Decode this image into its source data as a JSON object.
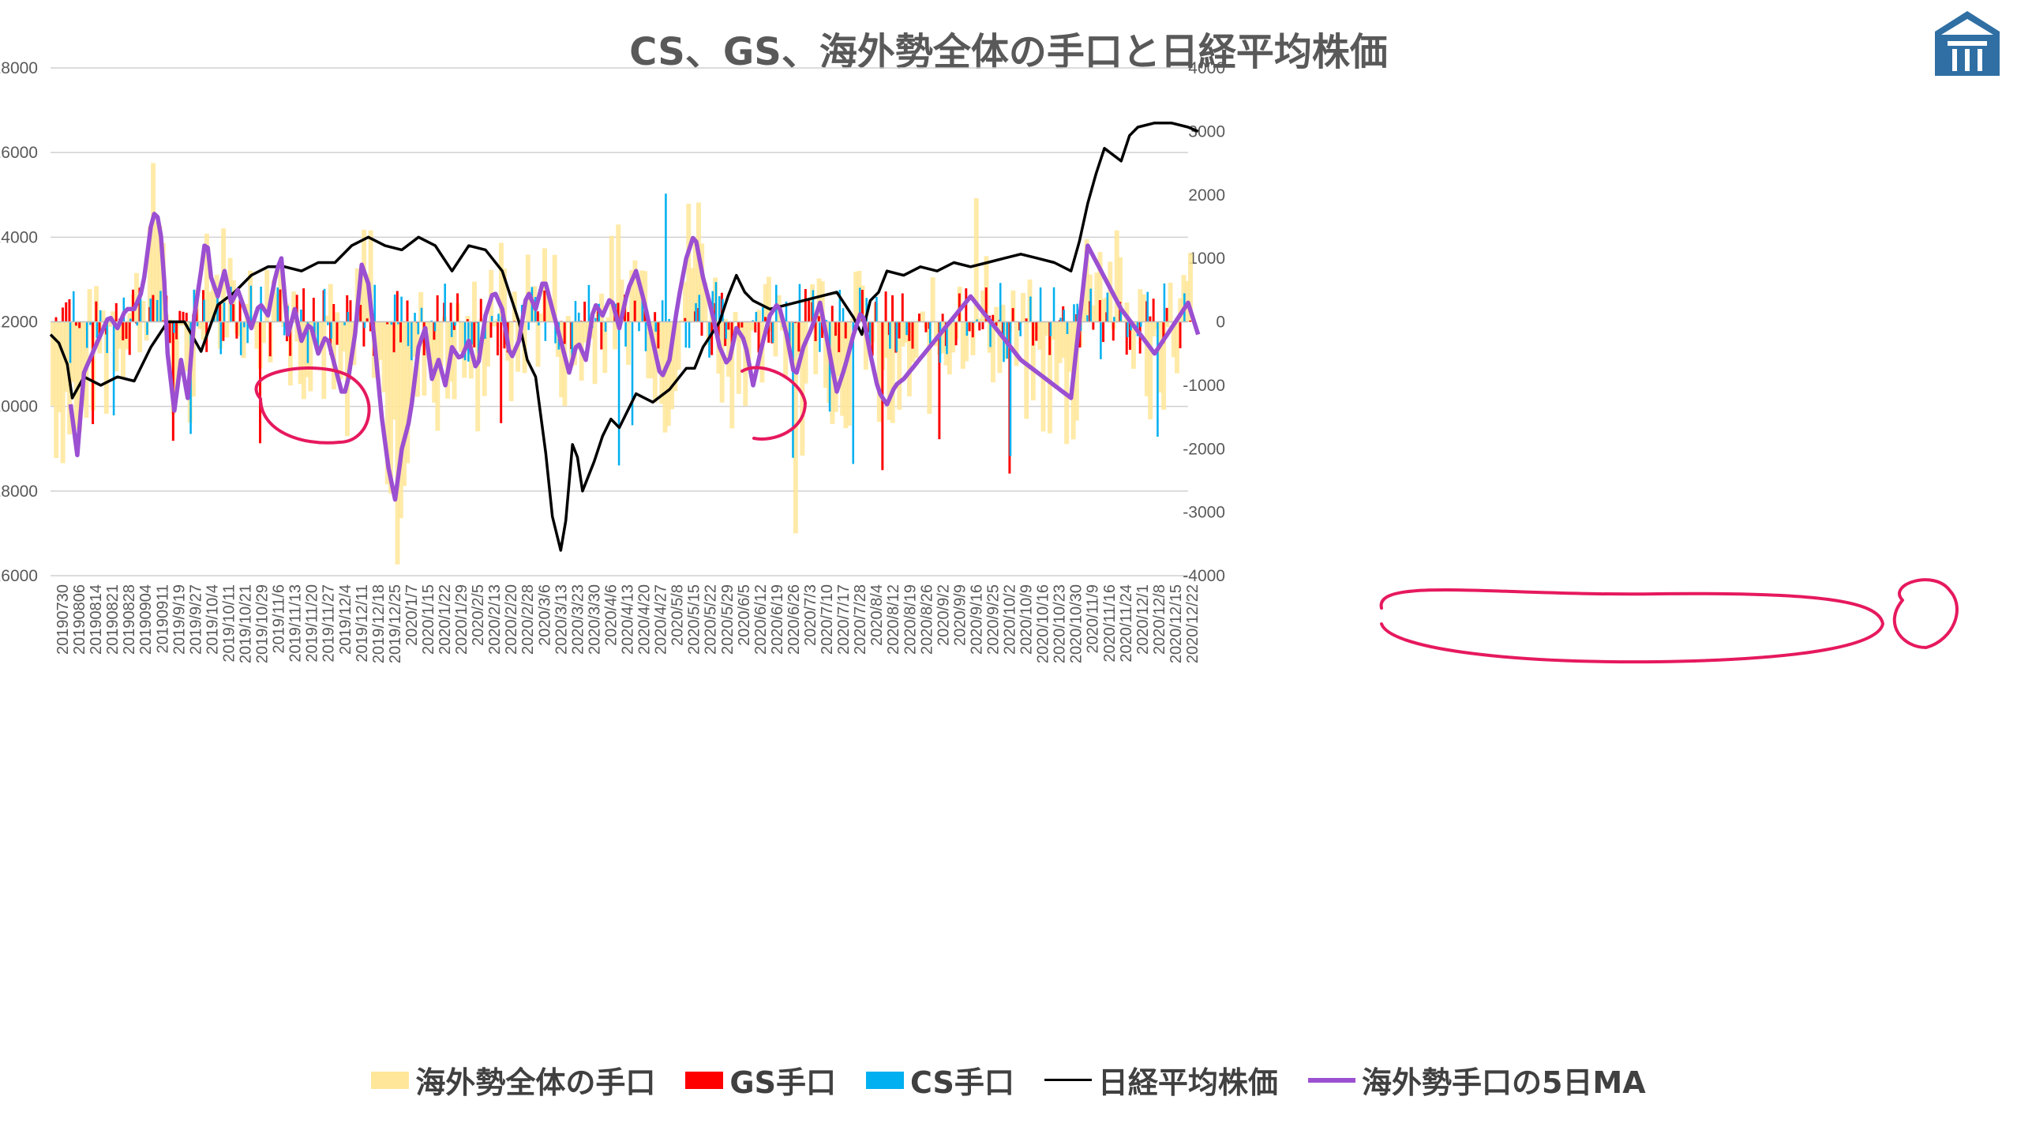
{
  "title": "CS、GS、海外勢全体の手口と日経平均株価",
  "legend": [
    {
      "label": "海外勢全体の手口",
      "kind": "box",
      "color": "#FFE699"
    },
    {
      "label": "GS手口",
      "kind": "box",
      "color": "#FF0000"
    },
    {
      "label": "CS手口",
      "kind": "box",
      "color": "#00B0F0"
    },
    {
      "label": "日経平均株価",
      "kind": "line",
      "color": "#000000"
    },
    {
      "label": "海外勢手口の5日MA",
      "kind": "line",
      "color": "#9B4FD1"
    }
  ],
  "chart_data": {
    "type": "bar",
    "title": "CS、GS、海外勢全体の手口と日経平均株価",
    "left_axis": {
      "min": 16000,
      "max": 28000,
      "ticks": [
        16000,
        18000,
        20000,
        22000,
        24000,
        26000,
        28000
      ]
    },
    "right_axis": {
      "min": -4000,
      "max": 4000,
      "ticks": [
        -4000,
        -3000,
        -2000,
        -1000,
        0,
        1000,
        2000,
        3000,
        4000
      ]
    },
    "grid": true,
    "legend_position": "bottom",
    "x_tick_labels": [
      "20190730",
      "20190806",
      "20190814",
      "20190821",
      "20190828",
      "20190904",
      "20190911",
      "2019/9/19",
      "2019/9/27",
      "2019/10/4",
      "2019/10/11",
      "2019/10/21",
      "2019/10/29",
      "2019/11/6",
      "2019/11/13",
      "2019/11/20",
      "2019/11/27",
      "2019/12/4",
      "2019/12/11",
      "2019/12/18",
      "2019/12/25",
      "2020/1/7",
      "2020/1/15",
      "2020/1/22",
      "2020/1/29",
      "2020/2/5",
      "2020/2/13",
      "2020/2/20",
      "2020/2/28",
      "2020/3/6",
      "2020/3/13",
      "2020/3/23",
      "2020/3/30",
      "2020/4/6",
      "2020/4/13",
      "2020/4/20",
      "2020/4/27",
      "2020/5/8",
      "2020/5/15",
      "2020/5/22",
      "2020/5/29",
      "2020/6/5",
      "2020/6/12",
      "2020/6/19",
      "2020/6/26",
      "2020/7/3",
      "2020/7/10",
      "2020/7/17",
      "2020/7/28",
      "2020/8/4",
      "2020/8/12",
      "2020/8/19",
      "2020/8/26",
      "2020/9/2",
      "2020/9/9",
      "2020/9/16",
      "2020/9/25",
      "2020/10/2",
      "2020/10/9",
      "2020/10/16",
      "2020/10/23",
      "2020/10/30",
      "2020/11/9",
      "2020/11/16",
      "2020/11/24",
      "2020/12/1",
      "2020/12/8",
      "2020/12/15",
      "2020/12/22"
    ],
    "series": [
      {
        "name": "日経平均株価",
        "type": "line",
        "axis": "left",
        "color": "#000000",
        "anchors": [
          [
            0,
            21700
          ],
          [
            0.5,
            21500
          ],
          [
            1,
            21000
          ],
          [
            1.3,
            20200
          ],
          [
            2,
            20700
          ],
          [
            3,
            20500
          ],
          [
            4,
            20700
          ],
          [
            5,
            20600
          ],
          [
            6,
            21400
          ],
          [
            7,
            22000
          ],
          [
            8,
            22000
          ],
          [
            9,
            21300
          ],
          [
            10,
            22400
          ],
          [
            11,
            22700
          ],
          [
            12,
            23100
          ],
          [
            13,
            23300
          ],
          [
            14,
            23300
          ],
          [
            15,
            23200
          ],
          [
            16,
            23400
          ],
          [
            17,
            23400
          ],
          [
            18,
            23800
          ],
          [
            19,
            24000
          ],
          [
            20,
            23800
          ],
          [
            21,
            23700
          ],
          [
            22,
            24000
          ],
          [
            23,
            23800
          ],
          [
            24,
            23200
          ],
          [
            25,
            23800
          ],
          [
            26,
            23700
          ],
          [
            27,
            23200
          ],
          [
            28,
            22000
          ],
          [
            28.5,
            21100
          ],
          [
            29,
            20700
          ],
          [
            29.6,
            18900
          ],
          [
            30,
            17400
          ],
          [
            30.5,
            16600
          ],
          [
            30.8,
            17300
          ],
          [
            31.2,
            19100
          ],
          [
            31.5,
            18800
          ],
          [
            31.8,
            18000
          ],
          [
            32.5,
            18700
          ],
          [
            33,
            19300
          ],
          [
            33.5,
            19700
          ],
          [
            34,
            19500
          ],
          [
            34.5,
            19900
          ],
          [
            35,
            20300
          ],
          [
            36,
            20100
          ],
          [
            37,
            20400
          ],
          [
            38,
            20900
          ],
          [
            38.5,
            20900
          ],
          [
            39,
            21400
          ],
          [
            40,
            22000
          ],
          [
            40.5,
            22600
          ],
          [
            41,
            23100
          ],
          [
            41.5,
            22700
          ],
          [
            42,
            22500
          ],
          [
            43,
            22300
          ],
          [
            44,
            22400
          ],
          [
            45,
            22500
          ],
          [
            46,
            22600
          ],
          [
            47,
            22700
          ],
          [
            48,
            22100
          ],
          [
            48.5,
            21700
          ],
          [
            49,
            22500
          ],
          [
            49.5,
            22700
          ],
          [
            50,
            23200
          ],
          [
            51,
            23100
          ],
          [
            52,
            23300
          ],
          [
            53,
            23200
          ],
          [
            54,
            23400
          ],
          [
            55,
            23300
          ],
          [
            56,
            23400
          ],
          [
            57,
            23500
          ],
          [
            58,
            23600
          ],
          [
            59,
            23500
          ],
          [
            60,
            23400
          ],
          [
            61,
            23200
          ],
          [
            61.5,
            23900
          ],
          [
            62,
            24800
          ],
          [
            62.5,
            25500
          ],
          [
            63,
            26100
          ],
          [
            64,
            25800
          ],
          [
            64.5,
            26400
          ],
          [
            65,
            26600
          ],
          [
            66,
            26700
          ],
          [
            67,
            26700
          ],
          [
            68,
            26600
          ],
          [
            68.6,
            26500
          ]
        ]
      },
      {
        "name": "海外勢手口の5日MA",
        "type": "line",
        "axis": "right",
        "color": "#9B4FD1",
        "anchors": [
          [
            1.2,
            -1300
          ],
          [
            1.6,
            -2100
          ],
          [
            2,
            -800
          ],
          [
            2.5,
            -500
          ],
          [
            3,
            -200
          ],
          [
            3.5,
            100
          ],
          [
            4,
            -100
          ],
          [
            4.5,
            200
          ],
          [
            5,
            200
          ],
          [
            5.5,
            500
          ],
          [
            6,
            1500
          ],
          [
            6.3,
            1800
          ],
          [
            6.7,
            1200
          ],
          [
            7,
            -500
          ],
          [
            7.4,
            -1400
          ],
          [
            7.8,
            -600
          ],
          [
            8.2,
            -1200
          ],
          [
            8.6,
            100
          ],
          [
            9,
            800
          ],
          [
            9.3,
            1400
          ],
          [
            9.6,
            700
          ],
          [
            10,
            400
          ],
          [
            10.4,
            800
          ],
          [
            10.8,
            300
          ],
          [
            11.2,
            500
          ],
          [
            11.6,
            200
          ],
          [
            12,
            -100
          ],
          [
            12.5,
            300
          ],
          [
            13,
            100
          ],
          [
            13.5,
            800
          ],
          [
            13.8,
            1000
          ],
          [
            14.2,
            -200
          ],
          [
            14.6,
            200
          ],
          [
            15,
            -300
          ],
          [
            15.5,
            0
          ],
          [
            16,
            -500
          ],
          [
            16.5,
            -200
          ],
          [
            17,
            -700
          ],
          [
            17.5,
            -1200
          ],
          [
            17.8,
            -900
          ],
          [
            18.2,
            -200
          ],
          [
            18.6,
            900
          ],
          [
            19,
            600
          ],
          [
            19.4,
            -400
          ],
          [
            19.8,
            -1500
          ],
          [
            20.2,
            -2300
          ],
          [
            20.6,
            -2800
          ],
          [
            21,
            -2000
          ],
          [
            21.5,
            -1500
          ],
          [
            22,
            -400
          ],
          [
            22.4,
            -100
          ],
          [
            22.8,
            -900
          ],
          [
            23.2,
            -600
          ],
          [
            23.6,
            -1000
          ],
          [
            24,
            -400
          ],
          [
            24.5,
            -600
          ],
          [
            25,
            -300
          ],
          [
            25.5,
            -800
          ],
          [
            26,
            100
          ],
          [
            26.5,
            500
          ],
          [
            27,
            200
          ],
          [
            27.5,
            -600
          ],
          [
            28,
            -300
          ],
          [
            28.5,
            500
          ],
          [
            29,
            200
          ],
          [
            29.5,
            700
          ],
          [
            30,
            200
          ],
          [
            30.5,
            -300
          ],
          [
            31,
            -800
          ],
          [
            31.5,
            -300
          ],
          [
            32,
            -600
          ],
          [
            32.5,
            300
          ],
          [
            33,
            100
          ],
          [
            33.5,
            400
          ],
          [
            34,
            -100
          ],
          [
            34.5,
            500
          ],
          [
            35,
            800
          ],
          [
            35.5,
            300
          ],
          [
            36,
            -300
          ],
          [
            36.5,
            -900
          ],
          [
            37,
            -600
          ],
          [
            37.5,
            300
          ],
          [
            38,
            1000
          ],
          [
            38.5,
            1400
          ],
          [
            39,
            700
          ],
          [
            39.5,
            200
          ],
          [
            40,
            -400
          ],
          [
            40.5,
            -700
          ],
          [
            41,
            -100
          ],
          [
            41.5,
            -300
          ],
          [
            42,
            -1000
          ],
          [
            42.5,
            -400
          ],
          [
            43,
            100
          ],
          [
            43.5,
            300
          ],
          [
            44,
            -200
          ],
          [
            44.5,
            -900
          ],
          [
            45,
            -400
          ],
          [
            45.5,
            -100
          ],
          [
            46,
            300
          ],
          [
            46.5,
            -400
          ],
          [
            47,
            -1100
          ],
          [
            47.5,
            -700
          ],
          [
            48,
            -200
          ],
          [
            48.5,
            200
          ],
          [
            49,
            -500
          ],
          [
            49.5,
            -1100
          ],
          [
            50,
            -1300
          ],
          [
            50.5,
            -1000
          ],
          [
            51,
            -900
          ]
        ]
      }
    ],
    "bar_series": [
      {
        "name": "海外勢全体の手口",
        "axis": "right",
        "color": "#FFE699"
      },
      {
        "name": "GS手口",
        "axis": "right",
        "color": "#FF0000"
      },
      {
        "name": "CS手口",
        "axis": "right",
        "color": "#00B0F0"
      }
    ]
  }
}
